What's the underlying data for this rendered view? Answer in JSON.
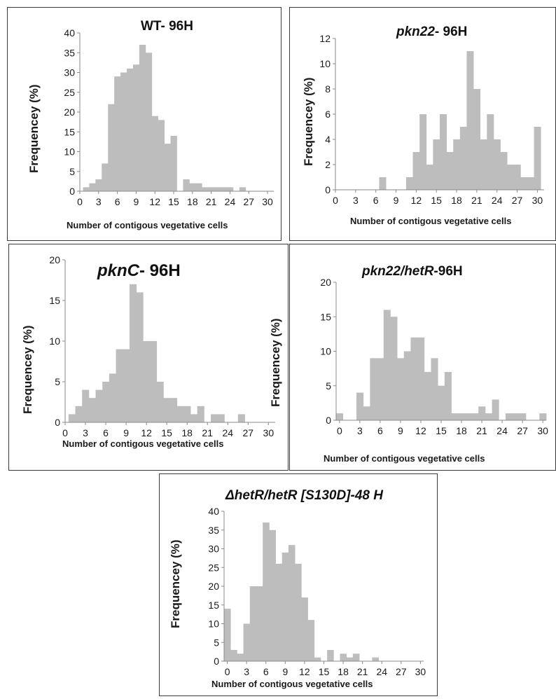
{
  "colors": {
    "bar": "#bdbdbd",
    "axis": "#8a8a8a",
    "border": "#3a3a3a",
    "text": "#1a1a1a"
  },
  "chart_data": [
    {
      "id": "wt",
      "type": "bar",
      "title_italic": "",
      "title_rest": "WT- 96H",
      "xlabel": "Number of contigous vegetative cells",
      "ylabel": "Frequencey (%)",
      "xlim": [
        0,
        31
      ],
      "xticks": [
        0,
        3,
        6,
        9,
        12,
        15,
        18,
        21,
        24,
        27,
        30
      ],
      "ylim": [
        0,
        40
      ],
      "yticks": [
        0,
        5,
        10,
        15,
        20,
        25,
        30,
        35,
        40
      ],
      "x": [
        0,
        1,
        2,
        3,
        4,
        5,
        6,
        7,
        8,
        9,
        10,
        11,
        12,
        13,
        14,
        15,
        16,
        17,
        18,
        19,
        20,
        21,
        22,
        23,
        24,
        25,
        26,
        27,
        28,
        29,
        30
      ],
      "values": [
        0,
        1,
        2,
        3,
        7,
        22,
        29,
        30,
        31,
        32,
        37,
        35,
        19,
        18,
        12,
        14,
        0,
        3,
        2,
        2,
        1,
        1,
        1,
        1,
        1,
        0,
        1,
        0,
        0,
        0,
        0
      ]
    },
    {
      "id": "pkn22",
      "type": "bar",
      "title_italic": "pkn22",
      "title_rest": "- 96H",
      "xlabel": "Number of contigous vegetative cells",
      "ylabel": "Frequencey (%)",
      "xlim": [
        0,
        31
      ],
      "xticks": [
        0,
        3,
        6,
        9,
        12,
        15,
        18,
        21,
        24,
        27,
        30
      ],
      "ylim": [
        0,
        12
      ],
      "yticks": [
        0,
        2,
        4,
        6,
        8,
        10,
        12
      ],
      "x": [
        0,
        1,
        2,
        3,
        4,
        5,
        6,
        7,
        8,
        9,
        10,
        11,
        12,
        13,
        14,
        15,
        16,
        17,
        18,
        19,
        20,
        21,
        22,
        23,
        24,
        25,
        26,
        27,
        28,
        29,
        30
      ],
      "values": [
        0,
        0,
        0,
        0,
        0,
        0,
        0,
        1,
        0,
        0,
        0,
        1,
        3,
        6,
        2,
        4,
        6,
        3,
        4,
        5,
        11,
        8,
        4,
        6,
        4,
        3,
        2,
        2,
        1,
        1,
        5
      ]
    },
    {
      "id": "pknc",
      "type": "bar",
      "title_italic": "pknC",
      "title_rest": "- 96H",
      "xlabel": "Number of contigous vegetative cells",
      "ylabel": "Frequencey (%)",
      "xlim": [
        0,
        31
      ],
      "xticks": [
        0,
        3,
        6,
        9,
        12,
        15,
        18,
        21,
        24,
        27,
        30
      ],
      "ylim": [
        0,
        20
      ],
      "yticks": [
        0,
        5,
        10,
        15,
        20
      ],
      "x": [
        0,
        1,
        2,
        3,
        4,
        5,
        6,
        7,
        8,
        9,
        10,
        11,
        12,
        13,
        14,
        15,
        16,
        17,
        18,
        19,
        20,
        21,
        22,
        23,
        24,
        25,
        26,
        27,
        28,
        29,
        30
      ],
      "values": [
        0,
        1,
        2,
        4,
        3,
        4,
        5,
        6,
        9,
        9,
        17,
        16,
        10,
        10,
        5,
        3,
        3,
        2,
        2,
        1,
        2,
        0,
        1,
        1,
        0,
        0,
        1,
        0,
        0,
        0,
        0
      ]
    },
    {
      "id": "pkn22hetr",
      "type": "bar",
      "title_italic": "pkn22/hetR",
      "title_rest": "-96H",
      "xlabel": "Number of contigous vegetative  cells",
      "ylabel": "Frequencey (%)",
      "xlim": [
        -0.5,
        30.5
      ],
      "xticks": [
        0,
        3,
        6,
        9,
        12,
        15,
        18,
        21,
        24,
        27,
        30
      ],
      "ylim": [
        0,
        20
      ],
      "yticks": [
        0,
        5,
        10,
        15,
        20
      ],
      "x": [
        0,
        1,
        2,
        3,
        4,
        5,
        6,
        7,
        8,
        9,
        10,
        11,
        12,
        13,
        14,
        15,
        16,
        17,
        18,
        19,
        20,
        21,
        22,
        23,
        24,
        25,
        26,
        27,
        28,
        29,
        30
      ],
      "values": [
        1,
        0,
        0,
        4,
        2,
        9,
        9,
        16,
        15,
        9,
        10,
        12,
        12,
        7,
        9,
        5,
        7,
        1,
        1,
        1,
        1,
        2,
        1,
        3,
        0,
        1,
        1,
        1,
        0,
        0,
        1
      ]
    },
    {
      "id": "hetr-s130d",
      "type": "bar",
      "title_italic": "ΔhetR/hetR  [S130D]-48  H",
      "title_rest": "",
      "xlabel": "Number of contigous vegetative cells",
      "ylabel": "Frequencey (%)",
      "xlim": [
        -0.5,
        30.5
      ],
      "xticks": [
        0,
        3,
        6,
        9,
        12,
        15,
        18,
        21,
        24,
        27,
        30
      ],
      "ylim": [
        0,
        40
      ],
      "yticks": [
        0,
        5,
        10,
        15,
        20,
        25,
        30,
        35,
        40
      ],
      "x": [
        0,
        1,
        2,
        3,
        4,
        5,
        6,
        7,
        8,
        9,
        10,
        11,
        12,
        13,
        14,
        15,
        16,
        17,
        18,
        19,
        20,
        21,
        22,
        23,
        24,
        25,
        26,
        27,
        28,
        29,
        30
      ],
      "values": [
        14,
        3,
        2,
        10,
        20,
        20,
        37,
        35,
        26,
        29,
        31,
        26,
        17,
        11,
        1,
        0,
        3,
        0,
        2,
        1,
        2,
        0,
        0,
        1,
        0,
        0,
        0,
        0,
        0,
        0,
        0
      ]
    }
  ]
}
